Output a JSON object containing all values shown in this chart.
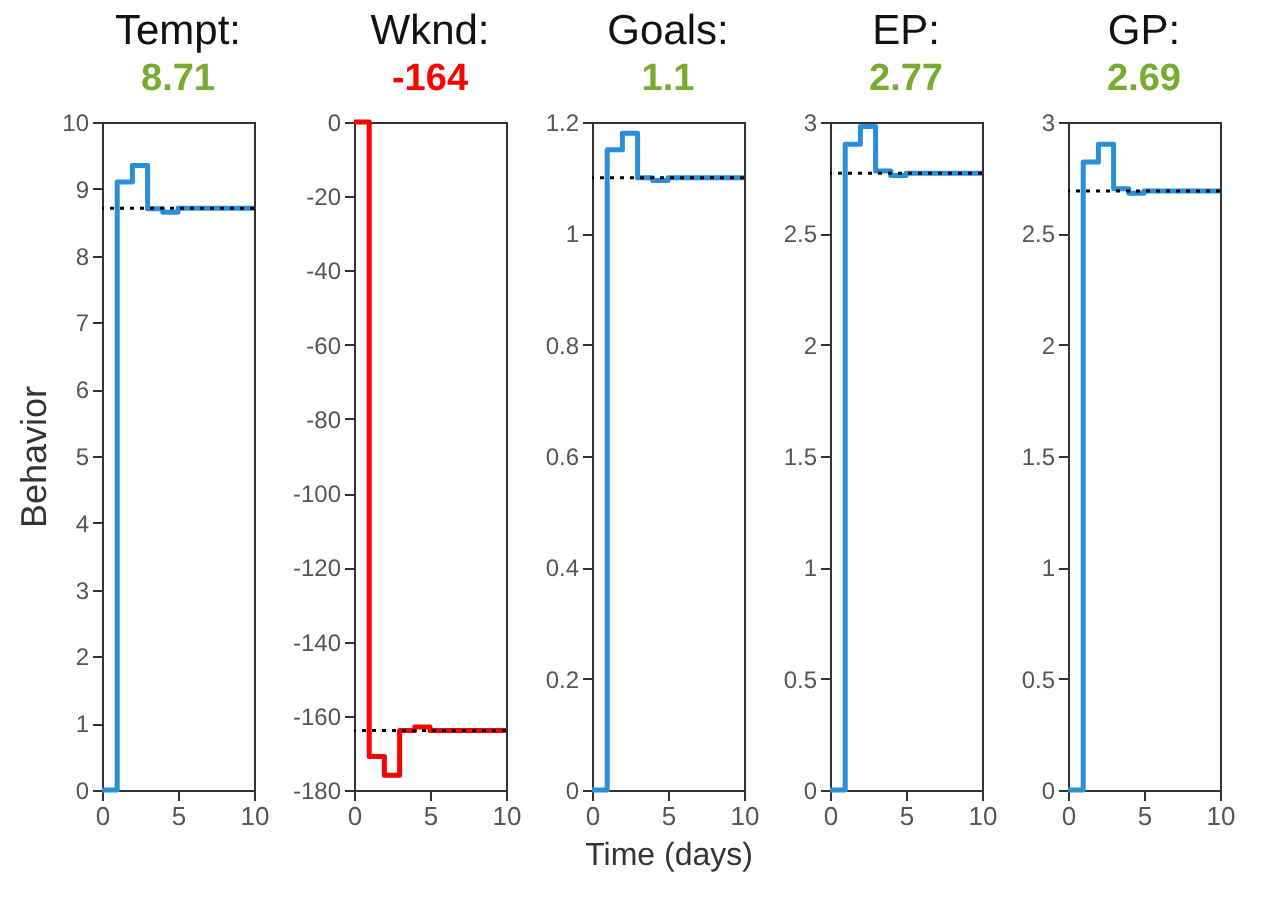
{
  "chart_data": [
    {
      "type": "step",
      "title": "Tempt:",
      "subtitle": "8.71",
      "ylabel": "Behavior",
      "x": [
        0,
        1,
        2,
        3,
        4,
        5,
        10
      ],
      "series": [
        {
          "color": "#2b8fd8",
          "values": [
            0,
            9.1,
            9.35,
            8.7,
            8.65,
            8.71,
            8.71
          ]
        }
      ],
      "xlim": [
        0,
        10
      ],
      "xticks": [
        0,
        5,
        10
      ],
      "ylim": [
        0,
        10
      ],
      "yticks": [
        0,
        1,
        2,
        3,
        4,
        5,
        6,
        7,
        8,
        9,
        10
      ],
      "ref_lines": [
        {
          "axis": "y",
          "value": 8.71,
          "color": "#000000",
          "line_style": "dotted"
        }
      ],
      "grid": false,
      "legend": false
    },
    {
      "type": "step",
      "title": "Wknd:",
      "subtitle": "-164",
      "x": [
        0,
        1,
        2,
        3,
        4,
        5,
        10
      ],
      "series": [
        {
          "color": "#ff0000",
          "values": [
            0,
            -171,
            -176,
            -164,
            -163,
            -164,
            -164
          ]
        }
      ],
      "xlim": [
        0,
        10
      ],
      "xticks": [
        0,
        5,
        10
      ],
      "ylim": [
        -180,
        0
      ],
      "yticks": [
        -180,
        -160,
        -140,
        -120,
        -100,
        -80,
        -60,
        -40,
        -20,
        0
      ],
      "ref_lines": [
        {
          "axis": "y",
          "value": -164,
          "color": "#000000",
          "line_style": "dotted"
        }
      ],
      "grid": false,
      "legend": false
    },
    {
      "type": "step",
      "title": "Goals:",
      "subtitle": "1.1",
      "xlabel": "Time (days)",
      "x": [
        0,
        1,
        2,
        3,
        4,
        5,
        10
      ],
      "series": [
        {
          "color": "#2b8fd8",
          "values": [
            0,
            1.15,
            1.18,
            1.1,
            1.095,
            1.1,
            1.1
          ]
        }
      ],
      "xlim": [
        0,
        10
      ],
      "xticks": [
        0,
        5,
        10
      ],
      "ylim": [
        0,
        1.2
      ],
      "yticks": [
        0,
        0.2,
        0.4,
        0.6,
        0.8,
        1,
        1.2
      ],
      "ref_lines": [
        {
          "axis": "y",
          "value": 1.1,
          "color": "#000000",
          "line_style": "dotted"
        }
      ],
      "grid": false,
      "legend": false
    },
    {
      "type": "step",
      "title": "EP:",
      "subtitle": "2.77",
      "x": [
        0,
        1,
        2,
        3,
        4,
        5,
        10
      ],
      "series": [
        {
          "color": "#2b8fd8",
          "values": [
            0,
            2.9,
            2.98,
            2.78,
            2.76,
            2.77,
            2.77
          ]
        }
      ],
      "xlim": [
        0,
        10
      ],
      "xticks": [
        0,
        5,
        10
      ],
      "ylim": [
        0,
        3
      ],
      "yticks": [
        0,
        0.5,
        1,
        1.5,
        2,
        2.5,
        3
      ],
      "ref_lines": [
        {
          "axis": "y",
          "value": 2.77,
          "color": "#000000",
          "line_style": "dotted"
        }
      ],
      "grid": false,
      "legend": false
    },
    {
      "type": "step",
      "title": "GP:",
      "subtitle": "2.69",
      "x": [
        0,
        1,
        2,
        3,
        4,
        5,
        10
      ],
      "series": [
        {
          "color": "#2b8fd8",
          "values": [
            0,
            2.82,
            2.9,
            2.7,
            2.68,
            2.69,
            2.69
          ]
        }
      ],
      "xlim": [
        0,
        10
      ],
      "xticks": [
        0,
        5,
        10
      ],
      "ylim": [
        0,
        3
      ],
      "yticks": [
        0,
        0.5,
        1,
        1.5,
        2,
        2.5,
        3
      ],
      "ref_lines": [
        {
          "axis": "y",
          "value": 2.69,
          "color": "#000000",
          "line_style": "dotted"
        }
      ],
      "grid": false,
      "legend": false
    }
  ]
}
